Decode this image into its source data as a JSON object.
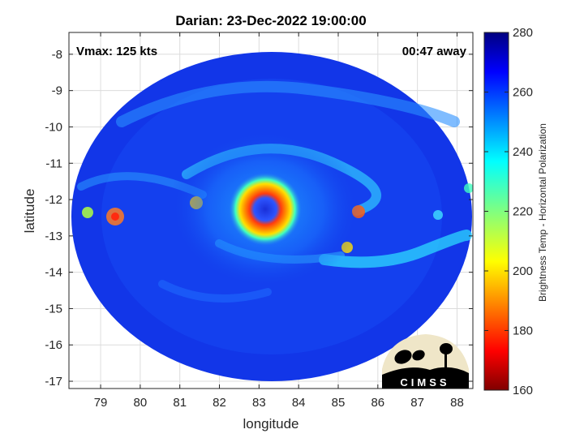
{
  "title": "Darian: 23-Dec-2022 19:00:00",
  "annotations": {
    "vmax": "Vmax: 125 kts",
    "time_away": "00:47 away"
  },
  "logo": {
    "text": "CIMSS"
  },
  "colors": {
    "eye": "#1a2fd8",
    "eyewall": "#ff3b10",
    "background_field": "#1236e8"
  },
  "chart_data": {
    "type": "heatmap",
    "title": "Darian: 23-Dec-2022 19:00:00",
    "xlabel": "longitude",
    "ylabel": "latitude",
    "xlim": [
      78.2,
      88.4
    ],
    "ylim": [
      -17.2,
      -7.4
    ],
    "xticks": [
      79,
      80,
      81,
      82,
      83,
      84,
      85,
      86,
      87,
      88
    ],
    "yticks": [
      -8,
      -9,
      -10,
      -11,
      -12,
      -13,
      -14,
      -15,
      -16,
      -17
    ],
    "xtick_labels": [
      "79",
      "80",
      "81",
      "82",
      "83",
      "84",
      "85",
      "86",
      "87",
      "88"
    ],
    "ytick_labels": [
      "-8",
      "-9",
      "-10",
      "-11",
      "-12",
      "-13",
      "-14",
      "-15",
      "-16",
      "-17"
    ],
    "grid": true,
    "storm_center": {
      "lon": 83.2,
      "lat": -12.2
    },
    "colorbar": {
      "label": "Brightness Temp - Horizontal Polarization",
      "range": [
        160,
        280
      ],
      "ticks": [
        160,
        180,
        200,
        220,
        240,
        260,
        280
      ],
      "tick_labels": [
        "160",
        "180",
        "200",
        "220",
        "240",
        "260",
        "280"
      ],
      "colormap": "jet"
    }
  }
}
